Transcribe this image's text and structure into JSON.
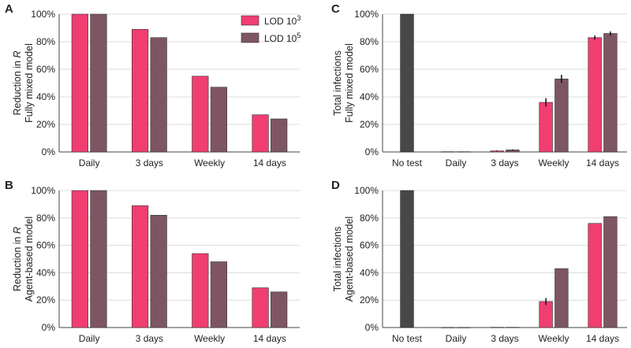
{
  "colors": {
    "lod3": "#f03e70",
    "lod5": "#7e5663",
    "notest": "#474747",
    "grid": "#dcdcdc",
    "axis": "#444444"
  },
  "legend": [
    {
      "base": "LOD 10",
      "exp": "3"
    },
    {
      "base": "LOD 10",
      "exp": "5"
    }
  ],
  "chart_data": [
    {
      "id": "A",
      "type": "bar",
      "panel_label": "A",
      "ylabel_line1": "Reduction in",
      "ylabel_italic": "R",
      "ylabel_line2": "Fully mixed model",
      "categories": [
        "Daily",
        "3 days",
        "Weekly",
        "14 days"
      ],
      "ylim": [
        0,
        100
      ],
      "yticks": [
        "0%",
        "20%",
        "40%",
        "60%",
        "80%",
        "100%"
      ],
      "series": [
        {
          "key": "lod3",
          "values": [
            100,
            89,
            55,
            27
          ]
        },
        {
          "key": "lod5",
          "values": [
            100,
            83,
            47,
            24
          ]
        }
      ],
      "legend": "top-right",
      "grid": true
    },
    {
      "id": "B",
      "type": "bar",
      "panel_label": "B",
      "ylabel_line1": "Reduction in",
      "ylabel_italic": "R",
      "ylabel_line2": "Agent-based model",
      "categories": [
        "Daily",
        "3 days",
        "Weekly",
        "14 days"
      ],
      "ylim": [
        0,
        100
      ],
      "yticks": [
        "0%",
        "20%",
        "40%",
        "60%",
        "80%",
        "100%"
      ],
      "series": [
        {
          "key": "lod3",
          "values": [
            100,
            89,
            54,
            29
          ]
        },
        {
          "key": "lod5",
          "values": [
            100,
            82,
            48,
            26
          ]
        }
      ],
      "grid": true
    },
    {
      "id": "C",
      "type": "bar",
      "panel_label": "C",
      "ylabel_line1": "Total infections",
      "ylabel_italic": "",
      "ylabel_line2": "Fully mixed model",
      "categories": [
        "No test",
        "Daily",
        "3 days",
        "Weekly",
        "14 days"
      ],
      "ylim": [
        0,
        100
      ],
      "yticks": [
        "0%",
        "20%",
        "40%",
        "60%",
        "80%",
        "100%"
      ],
      "notest_value": 100,
      "series": [
        {
          "key": "lod3",
          "values": [
            null,
            0.2,
            0.8,
            36,
            83
          ],
          "errors": [
            null,
            0,
            0.3,
            3,
            1.5
          ]
        },
        {
          "key": "lod5",
          "values": [
            null,
            0.2,
            1.5,
            53,
            86
          ],
          "errors": [
            null,
            0,
            0.4,
            3,
            1.5
          ]
        }
      ],
      "grid": true
    },
    {
      "id": "D",
      "type": "bar",
      "panel_label": "D",
      "ylabel_line1": "Total infections",
      "ylabel_italic": "",
      "ylabel_line2": "Agent-based model",
      "categories": [
        "No test",
        "Daily",
        "3 days",
        "Weekly",
        "14 days"
      ],
      "ylim": [
        0,
        100
      ],
      "yticks": [
        "0%",
        "20%",
        "40%",
        "60%",
        "80%",
        "100%"
      ],
      "notest_value": 100,
      "series": [
        {
          "key": "lod3",
          "values": [
            null,
            0.1,
            0.2,
            19,
            76
          ],
          "errors": [
            null,
            0,
            0,
            2.5,
            0
          ]
        },
        {
          "key": "lod5",
          "values": [
            null,
            0.1,
            0.2,
            43,
            81
          ],
          "errors": [
            null,
            0,
            0,
            0,
            0
          ]
        }
      ],
      "grid": true
    }
  ]
}
